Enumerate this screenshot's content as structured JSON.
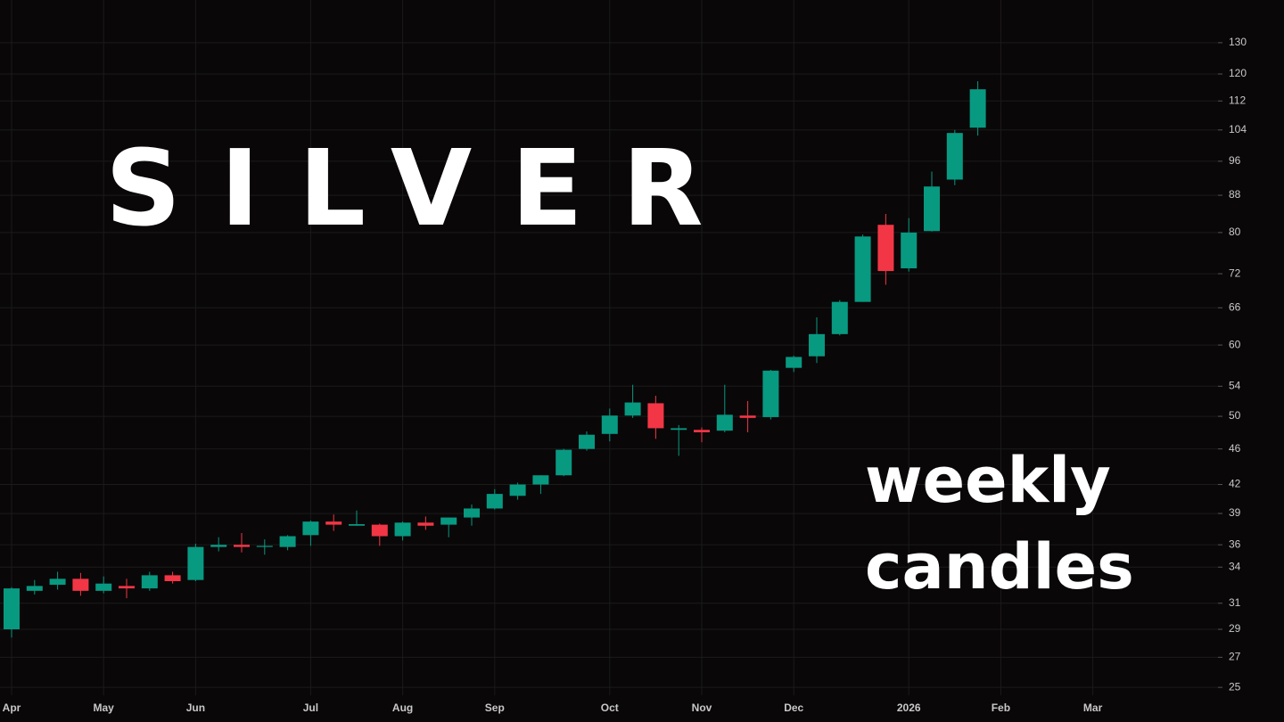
{
  "chart_data": {
    "type": "candlestick",
    "title": "SILVER",
    "annotations": [
      "weekly",
      "candles"
    ],
    "categories": [
      "Apr",
      null,
      null,
      null,
      "May",
      null,
      null,
      null,
      "Jun",
      null,
      null,
      null,
      null,
      "Jul",
      null,
      null,
      null,
      "Aug",
      null,
      null,
      null,
      "Sep",
      null,
      null,
      null,
      null,
      "Oct",
      null,
      null,
      null,
      "Nov",
      null,
      null,
      null,
      "Dec",
      null,
      null,
      null,
      null,
      "2026",
      null,
      null,
      null,
      "Feb",
      null,
      null,
      null,
      "Mar",
      null,
      null,
      null,
      null,
      null
    ],
    "open": [
      29.0,
      32.0,
      32.5,
      33.0,
      32.0,
      32.4,
      32.2,
      33.3,
      32.9,
      35.8,
      36.0,
      35.8,
      35.8,
      36.9,
      38.2,
      37.8,
      37.9,
      36.8,
      38.1,
      37.9,
      38.6,
      39.5,
      40.8,
      42.0,
      43.0,
      46.0,
      47.8,
      50.1,
      51.7,
      48.3,
      48.3,
      48.2,
      50.1,
      49.9,
      56.6,
      58.3,
      61.7,
      67.0,
      81.6,
      73.0,
      80.3,
      91.6,
      104.6,
      null,
      null,
      null,
      null,
      null,
      null,
      null,
      null,
      null,
      null
    ],
    "high": [
      32.3,
      32.9,
      33.6,
      33.5,
      33.2,
      33.0,
      33.6,
      33.6,
      36.1,
      36.7,
      37.1,
      36.5,
      36.9,
      38.3,
      38.9,
      39.3,
      38.0,
      38.2,
      38.7,
      38.6,
      39.9,
      41.5,
      42.2,
      43.0,
      46.0,
      48.1,
      51.0,
      54.2,
      52.7,
      48.9,
      48.6,
      54.2,
      52.0,
      56.3,
      58.4,
      64.4,
      67.3,
      79.6,
      83.9,
      83.0,
      93.5,
      104.0,
      117.8,
      null,
      null,
      null,
      null,
      null,
      null,
      null,
      null,
      null,
      null
    ],
    "low": [
      28.4,
      31.7,
      32.1,
      31.6,
      31.8,
      31.4,
      32.0,
      32.6,
      32.8,
      35.4,
      35.3,
      35.1,
      35.5,
      35.9,
      37.3,
      37.8,
      35.9,
      36.4,
      37.4,
      36.7,
      37.8,
      39.4,
      40.4,
      41.0,
      42.9,
      45.8,
      46.9,
      49.8,
      47.2,
      45.2,
      46.8,
      48.0,
      48.0,
      49.6,
      56.0,
      57.3,
      61.5,
      67.0,
      70.0,
      72.4,
      80.2,
      90.3,
      102.5,
      null,
      null,
      null,
      null,
      null,
      null,
      null,
      null,
      null,
      null
    ],
    "close": [
      32.2,
      32.4,
      33.0,
      32.0,
      32.6,
      32.2,
      33.3,
      32.8,
      35.8,
      36.0,
      35.8,
      35.9,
      36.8,
      38.2,
      37.9,
      37.95,
      36.8,
      38.1,
      37.8,
      38.6,
      39.5,
      41.0,
      42.0,
      43.0,
      45.9,
      47.7,
      50.1,
      51.8,
      48.5,
      48.5,
      48.0,
      50.2,
      49.8,
      56.2,
      58.2,
      61.7,
      67.0,
      79.2,
      72.5,
      80.0,
      90.0,
      103.2,
      115.4,
      null,
      null,
      null,
      null,
      null,
      null,
      null,
      null,
      null,
      null
    ],
    "up_color": "#089981",
    "down_color": "#f23645",
    "ylim": [
      24.5,
      145
    ],
    "log_scale": true,
    "grid": true,
    "yticks": [
      25,
      27,
      29,
      31,
      34,
      36,
      39,
      42,
      46,
      50,
      54,
      60,
      66,
      72,
      80,
      88,
      96,
      104,
      112,
      120,
      130
    ]
  }
}
